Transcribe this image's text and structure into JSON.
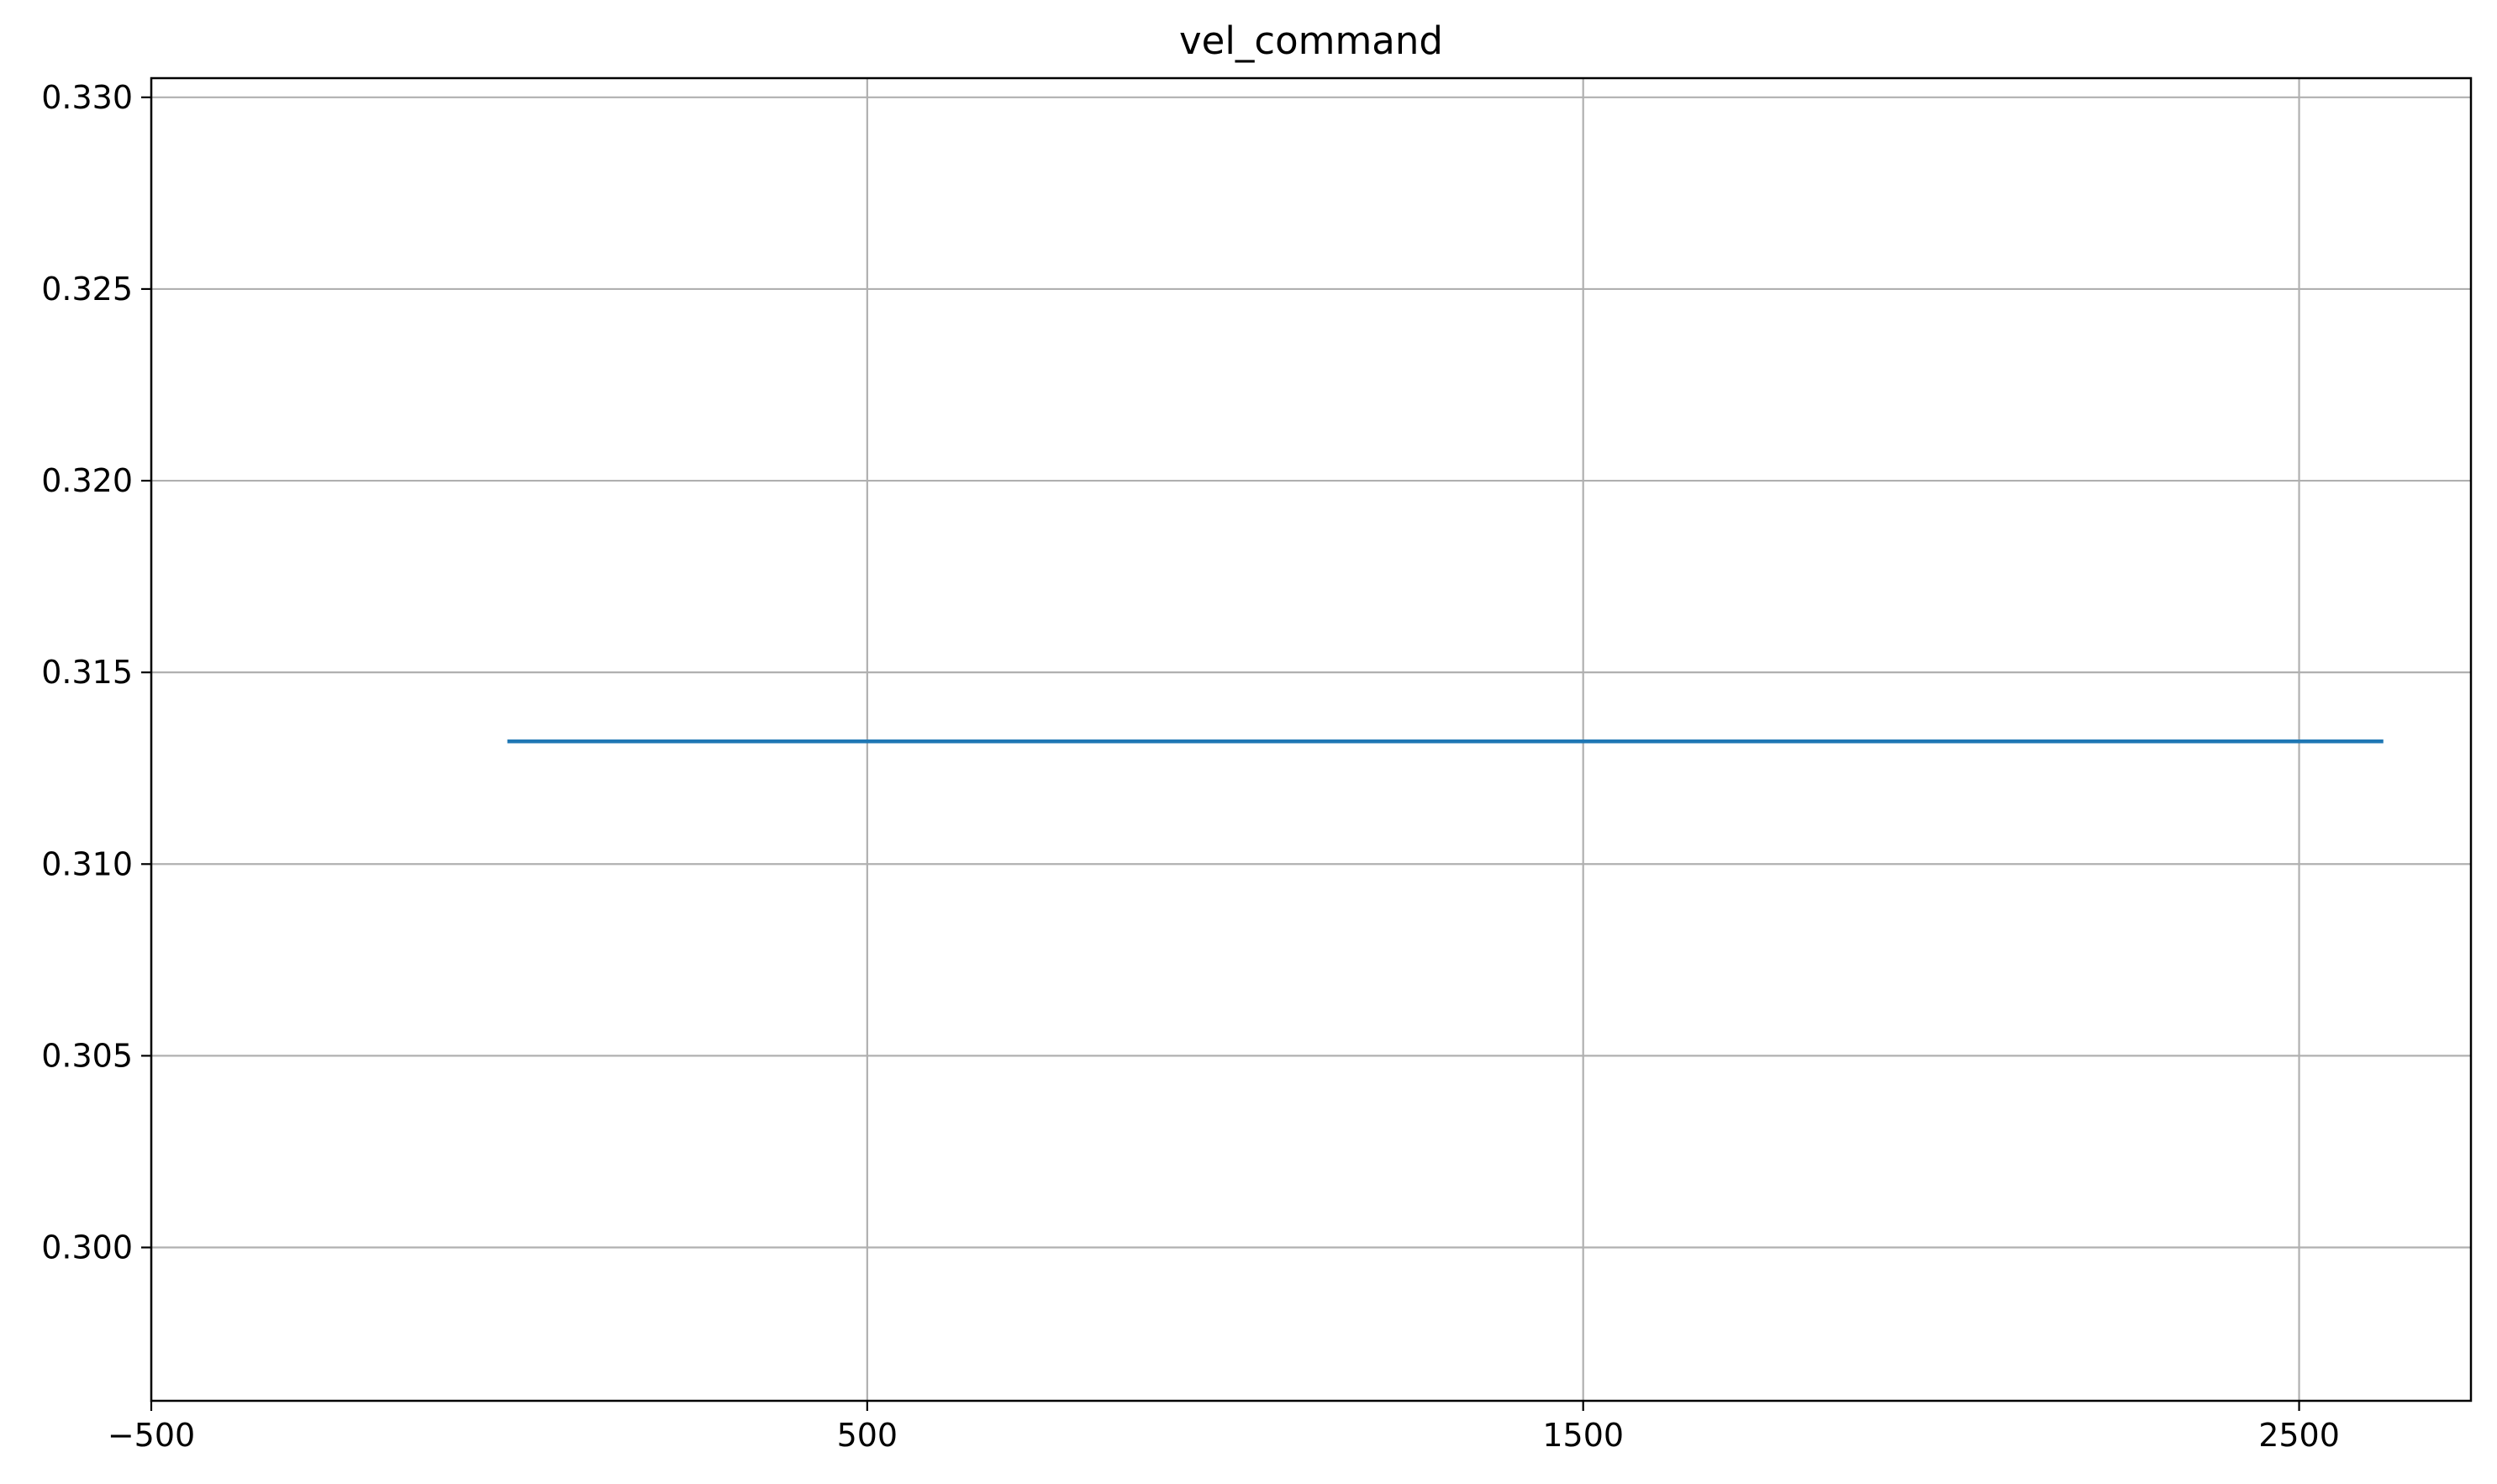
{
  "chart_data": {
    "type": "line",
    "title": "vel_command",
    "xlabel": "",
    "ylabel": "",
    "xlim": [
      -500,
      2740
    ],
    "ylim": [
      0.296,
      0.3305
    ],
    "grid": true,
    "x_ticks": [
      -500,
      500,
      1500,
      2500
    ],
    "x_tick_labels": [
      "−500",
      "500",
      "1500",
      "2500"
    ],
    "y_ticks": [
      0.3,
      0.305,
      0.31,
      0.315,
      0.32,
      0.325,
      0.33
    ],
    "y_tick_labels": [
      "0.300",
      "0.305",
      "0.310",
      "0.315",
      "0.320",
      "0.325",
      "0.330"
    ],
    "series": [
      {
        "name": "vel_command",
        "color": "#1f77b4",
        "x": [
          0,
          2615
        ],
        "y": [
          0.3132,
          0.3132
        ]
      }
    ]
  }
}
